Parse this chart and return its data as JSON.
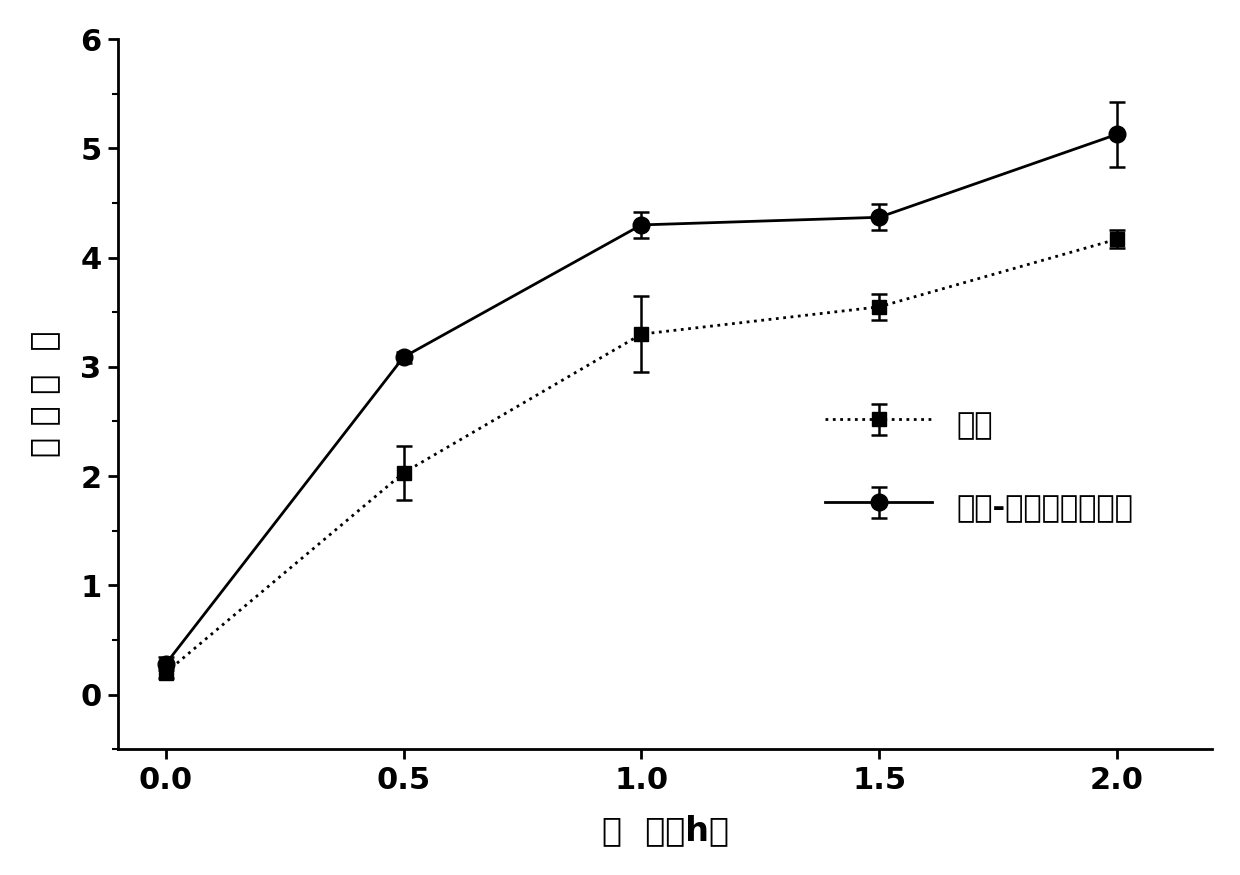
{
  "x": [
    0.0,
    0.5,
    1.0,
    1.5,
    2.0
  ],
  "laccase_y": [
    0.2,
    2.03,
    3.3,
    3.55,
    4.17
  ],
  "laccase_yerr": [
    0.05,
    0.25,
    0.35,
    0.12,
    0.08
  ],
  "laccase_mediator_y": [
    0.28,
    3.09,
    4.3,
    4.37,
    5.13
  ],
  "laccase_mediator_yerr": [
    0.06,
    0.05,
    0.12,
    0.12,
    0.3
  ],
  "xlabel": "时  间（h）",
  "ylabel": "产 物 浓  度",
  "xlim": [
    -0.1,
    2.2
  ],
  "ylim": [
    -0.5,
    6.0
  ],
  "xticks": [
    0.0,
    0.5,
    1.0,
    1.5,
    2.0
  ],
  "yticks": [
    0,
    1,
    2,
    3,
    4,
    5,
    6
  ],
  "legend_laccase": "漆酶",
  "legend_mediator": "漆酶-蛋白质介体体系",
  "bg_color": "#ffffff",
  "line_color": "#000000"
}
